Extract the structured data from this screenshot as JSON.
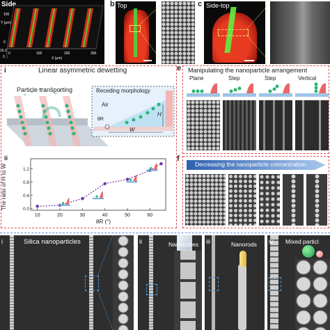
{
  "panel_a": {
    "label": "Side",
    "y_axis_label": "Y (μm)",
    "x_axis_label": "X (μm)",
    "y_ticks": [
      "100",
      "0"
    ],
    "x_ticks": [
      "0",
      "100",
      "200",
      "300"
    ],
    "z_ticks": [
      "16.1",
      "0"
    ]
  },
  "panel_b": {
    "letter": "b",
    "label": "Top"
  },
  "panel_c": {
    "letter": "c",
    "label": "Side-top"
  },
  "panel_d": {
    "label": "i",
    "title": "Linear asymmetric dewetting",
    "transport_label": "Particle transporting",
    "inset_title": "Receding morphology",
    "air_label": "Air",
    "theta_label": "θR",
    "h_label": "H",
    "w_label": "W"
  },
  "panel_d_chart": {
    "label": "ii",
    "ylabel": "The ratio of H to W",
    "xlabel": "θR (°)",
    "x_ticks": [
      "10",
      "20",
      "30",
      "40",
      "50",
      "60"
    ],
    "y_ticks": [
      "0.0",
      "0.4",
      "0.8",
      "1.2"
    ]
  },
  "chart_data": {
    "type": "line",
    "x": [
      10,
      20,
      30,
      40,
      50,
      60,
      65
    ],
    "y": [
      0.07,
      0.1,
      0.3,
      0.75,
      0.88,
      1.15,
      1.35
    ],
    "xlabel": "θR (°)",
    "ylabel": "The ratio of H to W",
    "xlim": [
      7,
      67
    ],
    "ylim": [
      -0.05,
      1.5
    ],
    "line_color": "#6b2fa3",
    "style": "dotted"
  },
  "panel_e": {
    "letter": "e",
    "title": "Manipulating the nanoparticle arrangement",
    "modes": [
      "Plane",
      "Step",
      "Step",
      "Vertical"
    ]
  },
  "panel_f": {
    "letter": "f",
    "arrow_label": "Decreasing the nanoparticle concentration"
  },
  "panel_g": [
    {
      "label": "i",
      "title": "Silica nanoparticles"
    },
    {
      "label": "ii",
      "title": "Nanocubes"
    },
    {
      "label": "iii",
      "title": "Nanorods"
    },
    {
      "label": "iv",
      "title": "Mixed particl"
    }
  ],
  "colors": {
    "dash_red": "#e05050",
    "fluor_red": "#e03020",
    "fluor_green": "#30d040",
    "particle_green": "#2bb673",
    "purple": "#6b2fa3",
    "blue_arrow": "#5b8fd6"
  }
}
